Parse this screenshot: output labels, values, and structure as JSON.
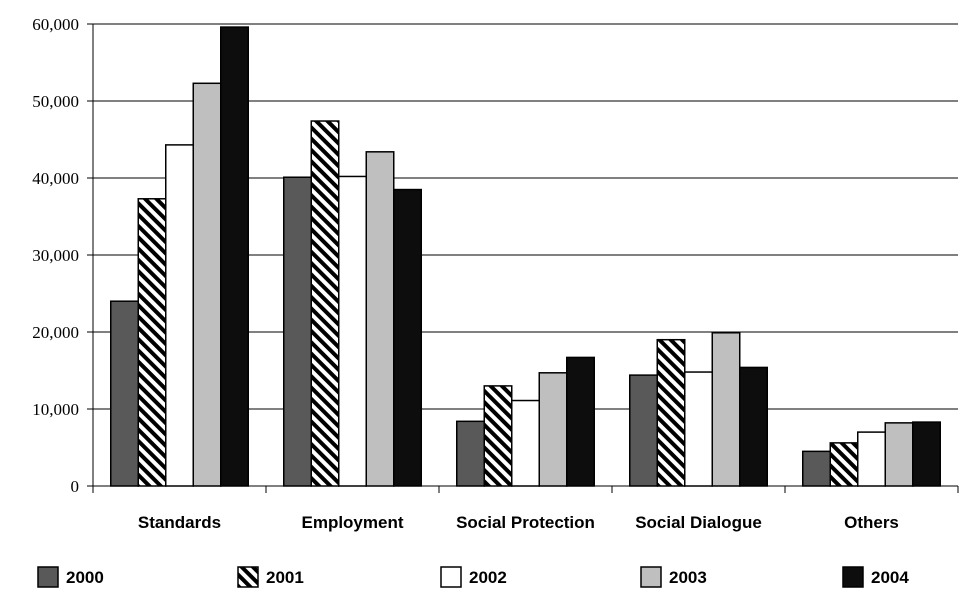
{
  "chart_data": {
    "type": "bar",
    "categories": [
      "Standards",
      "Employment",
      "Social Protection",
      "Social Dialogue",
      "Others"
    ],
    "series": [
      {
        "name": "2000",
        "values": [
          24000,
          40100,
          8400,
          14400,
          4500
        ],
        "color": "#595959",
        "pattern": "solid"
      },
      {
        "name": "2001",
        "values": [
          37300,
          47400,
          13000,
          19000,
          5600
        ],
        "color": "#000000",
        "pattern": "diagonal-hatch"
      },
      {
        "name": "2002",
        "values": [
          44300,
          40200,
          11100,
          14800,
          7000
        ],
        "color": "#ffffff",
        "pattern": "solid"
      },
      {
        "name": "2003",
        "values": [
          52300,
          43400,
          14700,
          19900,
          8200
        ],
        "color": "#bfbfbf",
        "pattern": "solid"
      },
      {
        "name": "2004",
        "values": [
          59600,
          38500,
          16700,
          15400,
          8300
        ],
        "color": "#0d0d0d",
        "pattern": "solid"
      }
    ],
    "yticks": [
      "0",
      "10,000",
      "20,000",
      "30,000",
      "40,000",
      "50,000",
      "60,000"
    ],
    "ylim": [
      0,
      60000
    ],
    "grid": true,
    "legend_position": "bottom",
    "title": "",
    "xlabel": "",
    "ylabel": ""
  }
}
